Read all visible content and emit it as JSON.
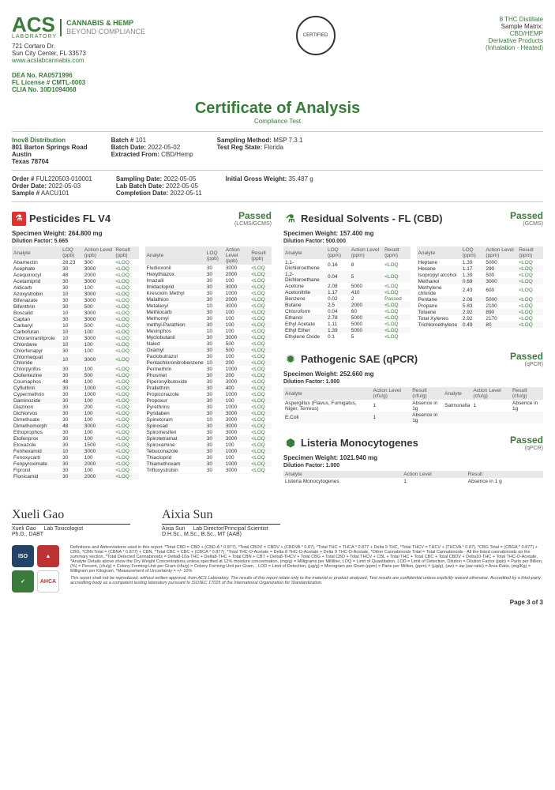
{
  "header": {
    "acs": "ACS",
    "lab": "LABORATORY",
    "tag1": "CANNABIS & HEMP",
    "tag2": "BEYOND COMPLIANCE",
    "addr1": "721 Cortaro Dr.",
    "addr2": "Sun City Center, FL 33573",
    "url": "www.acslabcannabis.com",
    "badge": "CERTIFIED",
    "r1": "8 THC Distillate",
    "r2": "Sample Matrix:",
    "r3": "CBD/HEMP",
    "r4": "Derivative Products",
    "r5": "(Inhalation - Heated)"
  },
  "ids": {
    "dea": "DEA No.",
    "dea_v": "RA0571996",
    "fl": "FL License #",
    "fl_v": "CMTL-0003",
    "clia": "CLIA No.",
    "clia_v": "10D1094068"
  },
  "title": {
    "h": "Certificate of Analysis",
    "sub": "Compliance Test"
  },
  "client": {
    "name": "Inov8 Distribution",
    "a1": "801 Barton Springs Road",
    "a2": "Austin",
    "a3": "Texas 78704"
  },
  "batch": {
    "b": "Batch #",
    "bv": "101",
    "bd": "Batch Date:",
    "bdv": "2022-05-02",
    "ef": "Extracted From:",
    "efv": "CBD/Hemp"
  },
  "samp": {
    "sm": "Sampling Method:",
    "smv": "MSP 7.3.1",
    "tr": "Test Reg State:",
    "trv": "Florida"
  },
  "order": {
    "o": "Order #",
    "ov": "FUL220503-010001",
    "od": "Order Date:",
    "odv": "2022-05-03",
    "s": "Sample #",
    "sv": "AACU101"
  },
  "dates": {
    "sd": "Sampling Date:",
    "sdv": "2022-05-05",
    "lb": "Lab Batch Date:",
    "lbv": "2022-05-05",
    "cd": "Completion Date:",
    "cdv": "2022-05-11"
  },
  "weight": {
    "l": "Initial Gross Weight:",
    "v": "35.487 g"
  },
  "pest": {
    "title": "Pesticides FL V4",
    "pass": "Passed",
    "method": "(LCMS/GCMS)",
    "spec": "Specimen Weight: 264.800 mg",
    "dil": "Dilution Factor: 5.665",
    "cols": [
      "Analyte",
      "LOQ (ppb)",
      "Action Level (ppb)",
      "Result (ppb)"
    ],
    "left": [
      [
        "Abamectin",
        "28.23",
        "300",
        "<LOQ"
      ],
      [
        "Acephate",
        "30",
        "3000",
        "<LOQ"
      ],
      [
        "Acequinocyl",
        "48",
        "2000",
        "<LOQ"
      ],
      [
        "Acetamiprid",
        "30",
        "3000",
        "<LOQ"
      ],
      [
        "Aldicarb",
        "30",
        "100",
        "<LOQ"
      ],
      [
        "Azoxystrobin",
        "10",
        "3000",
        "<LOQ"
      ],
      [
        "Bifenazate",
        "30",
        "3000",
        "<LOQ"
      ],
      [
        "Bifenthrin",
        "30",
        "500",
        "<LOQ"
      ],
      [
        "Boscalid",
        "10",
        "3000",
        "<LOQ"
      ],
      [
        "Captan",
        "30",
        "3000",
        "<LOQ"
      ],
      [
        "Carbaryl",
        "10",
        "500",
        "<LOQ"
      ],
      [
        "Carbofuran",
        "10",
        "100",
        "<LOQ"
      ],
      [
        "Chlorantraniliprole",
        "10",
        "3000",
        "<LOQ"
      ],
      [
        "Chlordane",
        "10",
        "100",
        "<LOQ"
      ],
      [
        "Chlorfenapyr",
        "30",
        "100",
        "<LOQ"
      ],
      [
        "Chlormequat Chloride",
        "10",
        "3000",
        "<LOQ"
      ],
      [
        "Chlorpyrifos",
        "30",
        "100",
        "<LOQ"
      ],
      [
        "Clofentezine",
        "30",
        "500",
        "<LOQ"
      ],
      [
        "Coumaphos",
        "48",
        "100",
        "<LOQ"
      ],
      [
        "Cyfluthrin",
        "30",
        "1000",
        "<LOQ"
      ],
      [
        "Cypermethrin",
        "30",
        "1000",
        "<LOQ"
      ],
      [
        "Daminozide",
        "30",
        "100",
        "<LOQ"
      ],
      [
        "Diazinon",
        "30",
        "200",
        "<LOQ"
      ],
      [
        "Dichlorvos",
        "30",
        "100",
        "<LOQ"
      ],
      [
        "Dimethoate",
        "30",
        "100",
        "<LOQ"
      ],
      [
        "Dimethomorph",
        "48",
        "3000",
        "<LOQ"
      ],
      [
        "Ethoprophos",
        "30",
        "100",
        "<LOQ"
      ],
      [
        "Etofenprox",
        "30",
        "100",
        "<LOQ"
      ],
      [
        "Etoxazole",
        "30",
        "1500",
        "<LOQ"
      ],
      [
        "Fenhexamid",
        "10",
        "3000",
        "<LOQ"
      ],
      [
        "Fenoxycarb",
        "30",
        "100",
        "<LOQ"
      ],
      [
        "Fenpyroximate",
        "30",
        "2000",
        "<LOQ"
      ],
      [
        "Fipronil",
        "30",
        "100",
        "<LOQ"
      ],
      [
        "Flonicamid",
        "30",
        "2000",
        "<LOQ"
      ]
    ],
    "right": [
      [
        "Fludioxonil",
        "30",
        "3000",
        "<LOQ"
      ],
      [
        "Hexythiazox",
        "30",
        "2000",
        "<LOQ"
      ],
      [
        "Imazalil",
        "30",
        "100",
        "<LOQ"
      ],
      [
        "Imidacloprid",
        "30",
        "3000",
        "<LOQ"
      ],
      [
        "Kresoxim Methyl",
        "30",
        "1000",
        "<LOQ"
      ],
      [
        "Malathion",
        "30",
        "2000",
        "<LOQ"
      ],
      [
        "Metalaxyl",
        "10",
        "3000",
        "<LOQ"
      ],
      [
        "Methiocarb",
        "30",
        "100",
        "<LOQ"
      ],
      [
        "Methomyl",
        "30",
        "100",
        "<LOQ"
      ],
      [
        "methyl-Parathion",
        "30",
        "100",
        "<LOQ"
      ],
      [
        "Mevinphos",
        "10",
        "100",
        "<LOQ"
      ],
      [
        "Myclobutanil",
        "30",
        "3000",
        "<LOQ"
      ],
      [
        "Naled",
        "30",
        "500",
        "<LOQ"
      ],
      [
        "Oxamyl",
        "30",
        "500",
        "<LOQ"
      ],
      [
        "Paclobutrazol",
        "30",
        "100",
        "<LOQ"
      ],
      [
        "Pentachloronitrobenzene",
        "10",
        "200",
        "<LOQ"
      ],
      [
        "Permethrin",
        "30",
        "1000",
        "<LOQ"
      ],
      [
        "Phosmet",
        "30",
        "200",
        "<LOQ"
      ],
      [
        "Piperonylbutoxide",
        "30",
        "3000",
        "<LOQ"
      ],
      [
        "Prallethrin",
        "30",
        "400",
        "<LOQ"
      ],
      [
        "Propiconazole",
        "30",
        "1000",
        "<LOQ"
      ],
      [
        "Propoxur",
        "30",
        "100",
        "<LOQ"
      ],
      [
        "Pyrethrins",
        "30",
        "1000",
        "<LOQ"
      ],
      [
        "Pyridaben",
        "30",
        "3000",
        "<LOQ"
      ],
      [
        "Spinetoram",
        "10",
        "3000",
        "<LOQ"
      ],
      [
        "Spinosad",
        "30",
        "3000",
        "<LOQ"
      ],
      [
        "Spiromesifen",
        "30",
        "3000",
        "<LOQ"
      ],
      [
        "Spirotetramat",
        "30",
        "3000",
        "<LOQ"
      ],
      [
        "Spiroxamine",
        "30",
        "100",
        "<LOQ"
      ],
      [
        "Tebuconazole",
        "30",
        "1000",
        "<LOQ"
      ],
      [
        "Thiacloprid",
        "30",
        "100",
        "<LOQ"
      ],
      [
        "Thiamethoxam",
        "30",
        "1000",
        "<LOQ"
      ],
      [
        "Trifloxystrobin",
        "30",
        "3000",
        "<LOQ"
      ],
      [
        "",
        "",
        "",
        ""
      ]
    ]
  },
  "solv": {
    "title": "Residual Solvents - FL (CBD)",
    "pass": "Passed",
    "method": "(GCMS)",
    "spec": "Specimen Weight: 157.400 mg",
    "dil": "Dilution Factor: 500.000",
    "cols": [
      "Analyte",
      "LOQ (ppm)",
      "Action Level (ppm)",
      "Result (ppm)"
    ],
    "left": [
      [
        "1,1-Dichloroethene",
        "0.16",
        "8",
        "<LOQ"
      ],
      [
        "1,2-Dichloroethane",
        "0.04",
        "5",
        "<LOQ"
      ],
      [
        "Acetone",
        "2.08",
        "5000",
        "<LOQ"
      ],
      [
        "Acetonitrile",
        "1.17",
        "410",
        "<LOQ"
      ],
      [
        "Benzene",
        "0.02",
        "2",
        "Passed"
      ],
      [
        "Butane",
        "2.5",
        "2000",
        "<LOQ"
      ],
      [
        "Chloroform",
        "0.04",
        "60",
        "<LOQ"
      ],
      [
        "Ethanol",
        "2.78",
        "5000",
        "<LOQ"
      ],
      [
        "Ethyl Acetate",
        "1.11",
        "5000",
        "<LOQ"
      ],
      [
        "Ethyl Ether",
        "1.39",
        "5000",
        "<LOQ"
      ],
      [
        "Ethylene Oxide",
        "0.1",
        "5",
        "<LOQ"
      ]
    ],
    "right": [
      [
        "Heptane",
        "1.39",
        "5000",
        "<LOQ"
      ],
      [
        "Hexane",
        "1.17",
        "290",
        "<LOQ"
      ],
      [
        "Isopropyl alcohol",
        "1.39",
        "500",
        "<LOQ"
      ],
      [
        "Methanol",
        "0.69",
        "3000",
        "<LOQ"
      ],
      [
        "Methylene chloride",
        "2.43",
        "600",
        "<LOQ"
      ],
      [
        "Pentane",
        "2.08",
        "5000",
        "<LOQ"
      ],
      [
        "Propane",
        "5.83",
        "2100",
        "<LOQ"
      ],
      [
        "Toluene",
        "2.92",
        "890",
        "<LOQ"
      ],
      [
        "Total Xylenes",
        "2.92",
        "2170",
        "<LOQ"
      ],
      [
        "Trichloroethylene",
        "0.49",
        "80",
        "<LOQ"
      ]
    ]
  },
  "path": {
    "title": "Pathogenic SAE (qPCR)",
    "pass": "Passed",
    "method": "(qPCR)",
    "spec": "Specimen Weight: 252.660 mg",
    "dil": "Dilution Factor: 1.000",
    "cols": [
      "Analyte",
      "Action Level (cfu/g)",
      "Result (cfu/g)",
      "Analyte",
      "Action Level (cfu/g)",
      "Result (cfu/g)"
    ],
    "rows": [
      [
        "Aspergillus (Flavus, Fumigatus, Niger, Terreus)",
        "1",
        "Absence in 1g",
        "Salmonella",
        "1",
        "Absence in 1g"
      ],
      [
        "E.Coli",
        "1",
        "Absence in 1g",
        "",
        "",
        ""
      ]
    ]
  },
  "list": {
    "title": "Listeria Monocytogenes",
    "pass": "Passed",
    "method": "(qPCR)",
    "spec": "Specimen Weight: 1021.940 mg",
    "dil": "Dilution Factor: 1.000",
    "cols": [
      "Analyte",
      "Action Level",
      "Result"
    ],
    "rows": [
      [
        "Listeria Monocytogenes",
        "1",
        "Absence in 1 g"
      ]
    ]
  },
  "sigs": {
    "s1": "Xueli Gao",
    "s1t": "Lab Toxicologist",
    "s1d": "Ph.D., DABT",
    "s2": "Aixia Sun",
    "s2t": "Lab Director/Principal Scientist",
    "s2d": "D.H.Sc., M.Sc., B.Sc., MT (AAB)"
  },
  "footer": {
    "defs": "Definitions and Abbreviations used in this report: *Total CBD = CBD + (CBD-A * 0.877), *Total CBDV = CBDV + (CBDVA * 0.87), *Total THC = THCA * 0.877 + Delta 9 THC, *Total THCV = THCV + (THCVA * 0.87), *CBG Total = (CBGA * 0.877) + CBG, *CBN Total = (CBNA * 0.877) + CBN, *Total CBC = CBC + (CBCA * 0.877), *Total THC-O-Acetate = Delta 8 THC-O-Acetate + Delta 9 THC-O-Acetate, *Other Cannabinoids Total = Total Cannabinoids - All the listed cannabinoids on the summary section, *Total Detected Cannabinoids = Delta8-10a-THC + Delta8-THC + Total CBN + CBT + Delta8-THCV + Total CBG + Total CBD + Total THCV + CBL + Total THC + Total CBC + Total CBDV + Delta10-THC + Total THC-O-Acetate, *Analyte Details above show the Dry Weight Concentrations unless specified at 12% moisture concentration, (mg/g) = Milligrams per Milliliter, LOQ = Limit of Quantitation, LOD = Limit of Detection, Dilution = Dilution Factor (ppb) = Parts per Billion, (%) = Percent, (cfu/g) = Colony Forming Unit per Gram (cfu/g) = Colony Forming Unit per Gram, , LOD = Limit of Detection, (μg/g) = Microgram per Gram (ppm) = Parts per Million, (ppm) = (μg/g), (aw) = aw (aw ratio) = Area Ratio, (mg/Kg) = Milligram per Kilogram, *Measurement of Uncertainty = +/- 10%",
    "disc": "This report shall not be reproduced, without written approval, from ACS Laboratory. The results of this report relate only to the material or product analyzed. Test results are confidential unless explicitly waived otherwise. Accredited by a third-party accrediting body as a competent testing laboratory pursuant to ISO/IEC 17025 of the International Organization for Standardization.",
    "page": "Page 3 of 3"
  }
}
